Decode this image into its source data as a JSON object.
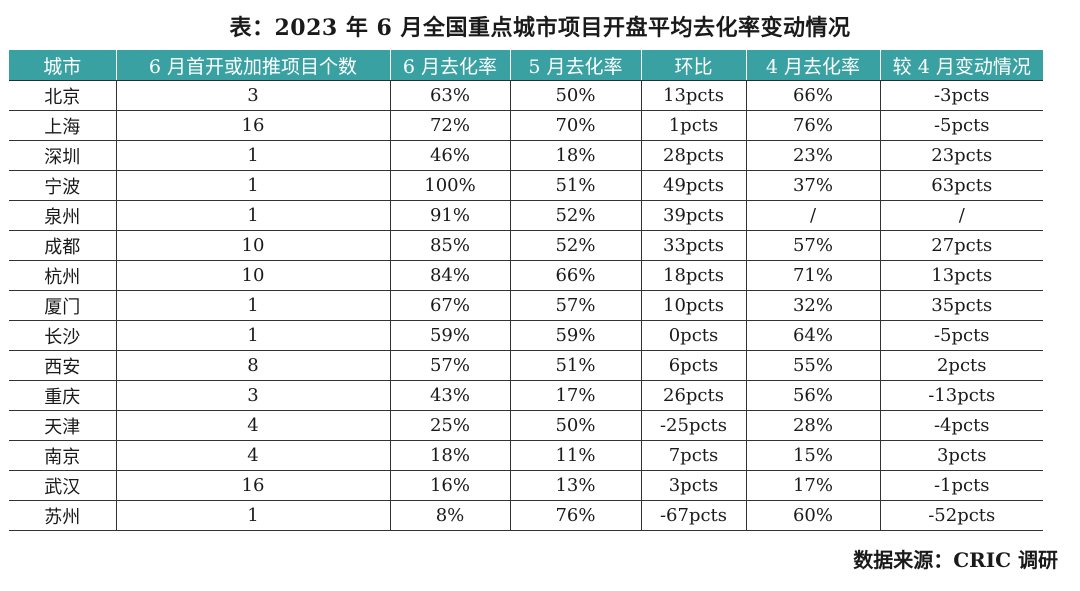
{
  "title": "表：2023 年 6 月全国重点城市项目开盘平均去化率变动情况",
  "table": {
    "headers": [
      "城市",
      "6 月首开或加推项目个数",
      "6 月去化率",
      "5 月去化率",
      "环比",
      "4 月去化率",
      "较 4 月变动情况"
    ],
    "rows": [
      [
        "北京",
        "3",
        "63%",
        "50%",
        "13pcts",
        "66%",
        "-3pcts"
      ],
      [
        "上海",
        "16",
        "72%",
        "70%",
        "1pcts",
        "76%",
        "-5pcts"
      ],
      [
        "深圳",
        "1",
        "46%",
        "18%",
        "28pcts",
        "23%",
        "23pcts"
      ],
      [
        "宁波",
        "1",
        "100%",
        "51%",
        "49pcts",
        "37%",
        "63pcts"
      ],
      [
        "泉州",
        "1",
        "91%",
        "52%",
        "39pcts",
        "/",
        "/"
      ],
      [
        "成都",
        "10",
        "85%",
        "52%",
        "33pcts",
        "57%",
        "27pcts"
      ],
      [
        "杭州",
        "10",
        "84%",
        "66%",
        "18pcts",
        "71%",
        "13pcts"
      ],
      [
        "厦门",
        "1",
        "67%",
        "57%",
        "10pcts",
        "32%",
        "35pcts"
      ],
      [
        "长沙",
        "1",
        "59%",
        "59%",
        "0pcts",
        "64%",
        "-5pcts"
      ],
      [
        "西安",
        "8",
        "57%",
        "51%",
        "6pcts",
        "55%",
        "2pcts"
      ],
      [
        "重庆",
        "3",
        "43%",
        "17%",
        "26pcts",
        "56%",
        "-13pcts"
      ],
      [
        "天津",
        "4",
        "25%",
        "50%",
        "-25pcts",
        "28%",
        "-4pcts"
      ],
      [
        "南京",
        "4",
        "18%",
        "11%",
        "7pcts",
        "15%",
        "3pcts"
      ],
      [
        "武汉",
        "16",
        "16%",
        "13%",
        "3pcts",
        "17%",
        "-1pcts"
      ],
      [
        "苏州",
        "1",
        "8%",
        "76%",
        "-67pcts",
        "60%",
        "-52pcts"
      ]
    ]
  },
  "source": "数据来源：CRIC 调研",
  "colors": {
    "header_bg": "#3aa1a3",
    "header_text": "#ffffff"
  }
}
